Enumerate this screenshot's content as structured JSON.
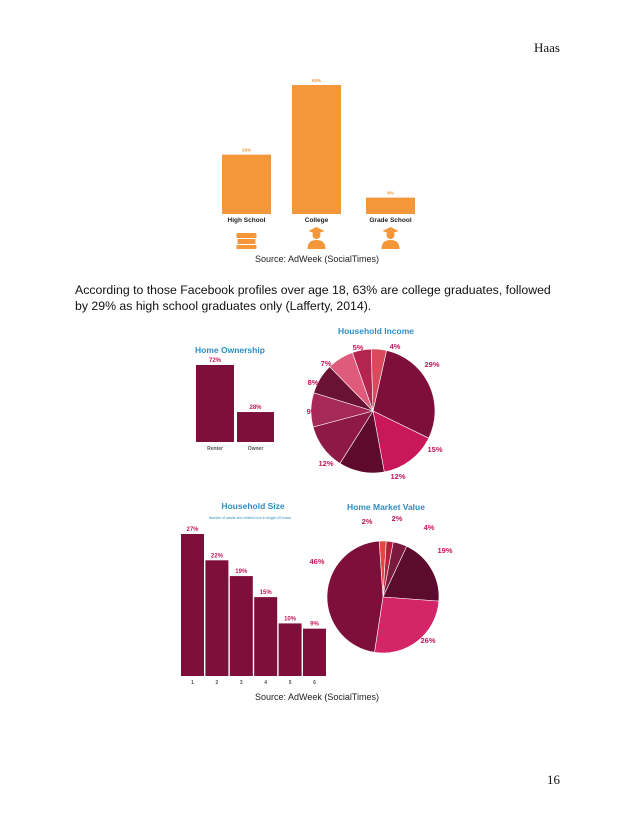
{
  "page": {
    "header_name": "Haas",
    "page_number": "16",
    "caption_1": "Source: AdWeek (SocialTimes)",
    "body_text": "According to those Facebook profiles over age 18, 63% are college graduates, followed by 29% as high school graduates only (Lafferty, 2014).",
    "caption_2": "Source: AdWeek (SocialTimes)"
  },
  "colors": {
    "education_orange": "#f3973a",
    "maroon": "#7d0f3a",
    "title_blue": "#2e8dc3"
  },
  "chart_data": [
    {
      "type": "bar",
      "categories": [
        "High School",
        "College",
        "Grade School"
      ],
      "values": [
        29,
        63,
        8
      ],
      "value_labels": [
        "29%",
        "63%",
        "8%"
      ],
      "ylim": [
        0,
        63
      ],
      "icons": [
        "book-stack-icon",
        "graduate-icon",
        "student-icon"
      ]
    },
    {
      "type": "bar",
      "title": "Home Ownership",
      "categories": [
        "Renter",
        "Owner"
      ],
      "values": [
        72,
        28
      ],
      "value_labels": [
        "72%",
        "28%"
      ],
      "ylim": [
        0,
        72
      ]
    },
    {
      "type": "pie",
      "title": "Household Income",
      "labels": [
        "29%",
        "15%",
        "12%",
        "12%",
        "9%",
        "8%",
        "7%",
        "5%",
        "4%"
      ],
      "values": [
        29,
        15,
        12,
        12,
        9,
        8,
        7,
        5,
        4
      ],
      "colors": [
        "#7d0f3a",
        "#c8175a",
        "#5e0a2d",
        "#8e1846",
        "#a62a57",
        "#6a1234",
        "#e05a7c",
        "#b5244e",
        "#d84a5c"
      ]
    },
    {
      "type": "bar",
      "title": "Household Size",
      "subtitle": "Number of adults and children live in single US home",
      "categories": [
        "1",
        "2",
        "3",
        "4",
        "5",
        "6"
      ],
      "values": [
        27,
        22,
        19,
        15,
        10,
        9
      ],
      "value_labels": [
        "27%",
        "22%",
        "19%",
        "15%",
        "10%",
        "9%"
      ],
      "ylim": [
        0,
        27
      ]
    },
    {
      "type": "pie",
      "title": "Home Market Value",
      "labels": [
        "2%",
        "2%",
        "4%",
        "19%",
        "26%",
        "46%"
      ],
      "values": [
        2,
        2,
        4,
        19,
        26,
        46
      ],
      "colors": [
        "#e1493f",
        "#b3203c",
        "#7a1a3c",
        "#5c0b2e",
        "#d42568",
        "#7d0f3a"
      ]
    }
  ]
}
